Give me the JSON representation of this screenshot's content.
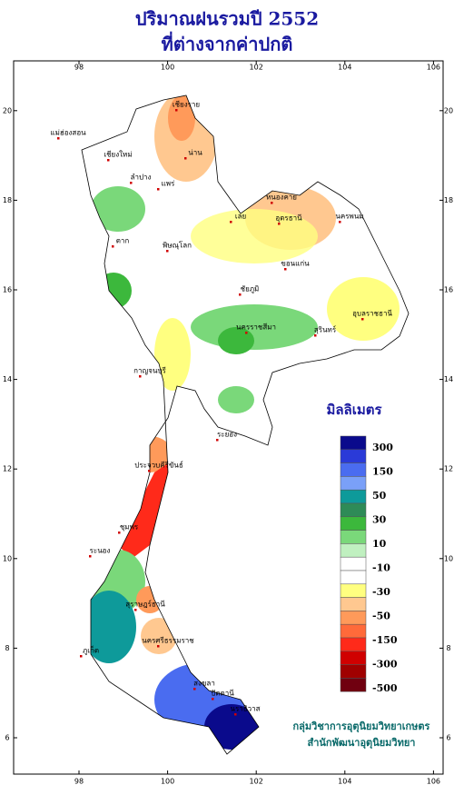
{
  "title": "ปริมาณฝนรวมปี 2552",
  "subtitle": "ที่ต่างจากค่าปกติ",
  "longitude_ticks": [
    98,
    100,
    102,
    104,
    106
  ],
  "latitude_ticks": [
    6,
    8,
    10,
    12,
    14,
    16,
    18,
    20
  ],
  "legend": {
    "title": "มิลลิเมตร",
    "colors": [
      "#0a0a8c",
      "#2a3ad8",
      "#4a6cf0",
      "#7aa0f8",
      "#0e9a9a",
      "#2e8b57",
      "#3cb83c",
      "#7ad87a",
      "#c0f0c0",
      "#ffffff",
      "#ffffff",
      "#ffff80",
      "#ffc890",
      "#ff9a5a",
      "#ff6a3a",
      "#ff2a1a",
      "#d00000",
      "#a00000",
      "#700010"
    ],
    "labels": [
      "300",
      "150",
      "50",
      "30",
      "10",
      "-10",
      "-30",
      "-50",
      "-150",
      "-300",
      "-500"
    ]
  },
  "places": [
    "เชียงราย",
    "แม่ฮ่องสอน",
    "เชียงใหม่",
    "น่าน",
    "ลำปาง",
    "แพร่",
    "หนองคาย",
    "อุดรธานี",
    "นครพนม",
    "เลย",
    "ตาก",
    "พิษณุโลก",
    "ขอนแก่น",
    "ชัยภูมิ",
    "อุบลราชธานี",
    "นครราชสีมา",
    "สุรินทร์",
    "กาญจนบุรี",
    "ระยอง",
    "ประจวบคีรีขันธ์",
    "ชุมพร",
    "ระนอง",
    "สุราษฎร์ธานี",
    "ภูเก็ต",
    "นครศรีธรรมราช",
    "สงขลา",
    "ปัตตานี",
    "นราธิวาส"
  ],
  "footer": [
    "กลุ่มวิชาการอุตุนิยมวิทยาเกษตร",
    "สำนักพัฒนาอุตุนิยมวิทยา"
  ]
}
